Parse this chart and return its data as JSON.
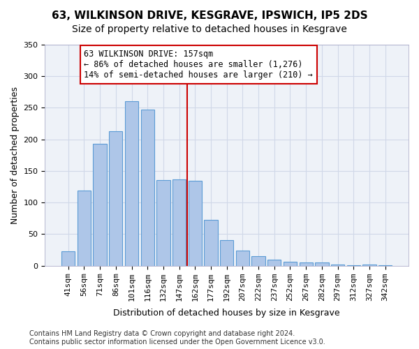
{
  "title": "63, WILKINSON DRIVE, KESGRAVE, IPSWICH, IP5 2DS",
  "subtitle": "Size of property relative to detached houses in Kesgrave",
  "xlabel": "Distribution of detached houses by size in Kesgrave",
  "ylabel": "Number of detached properties",
  "categories": [
    "41sqm",
    "56sqm",
    "71sqm",
    "86sqm",
    "101sqm",
    "116sqm",
    "132sqm",
    "147sqm",
    "162sqm",
    "177sqm",
    "192sqm",
    "207sqm",
    "222sqm",
    "237sqm",
    "252sqm",
    "267sqm",
    "282sqm",
    "297sqm",
    "312sqm",
    "327sqm",
    "342sqm"
  ],
  "values": [
    23,
    119,
    193,
    213,
    260,
    247,
    136,
    137,
    135,
    73,
    41,
    24,
    15,
    10,
    6,
    5,
    5,
    2,
    1,
    2,
    1
  ],
  "bar_color": "#aec6e8",
  "bar_edge_color": "#5b9bd5",
  "annotation_text": "63 WILKINSON DRIVE: 157sqm\n← 86% of detached houses are smaller (1,276)\n14% of semi-detached houses are larger (210) →",
  "annotation_box_color": "#ffffff",
  "annotation_box_edge_color": "#cc0000",
  "vline_color": "#cc0000",
  "vline_x": 7.5,
  "ylim": [
    0,
    350
  ],
  "yticks": [
    0,
    50,
    100,
    150,
    200,
    250,
    300,
    350
  ],
  "grid_color": "#d0d8e8",
  "background_color": "#eef2f8",
  "footer_text": "Contains HM Land Registry data © Crown copyright and database right 2024.\nContains public sector information licensed under the Open Government Licence v3.0.",
  "title_fontsize": 11,
  "subtitle_fontsize": 10,
  "axis_label_fontsize": 9,
  "tick_fontsize": 8,
  "footer_fontsize": 7
}
